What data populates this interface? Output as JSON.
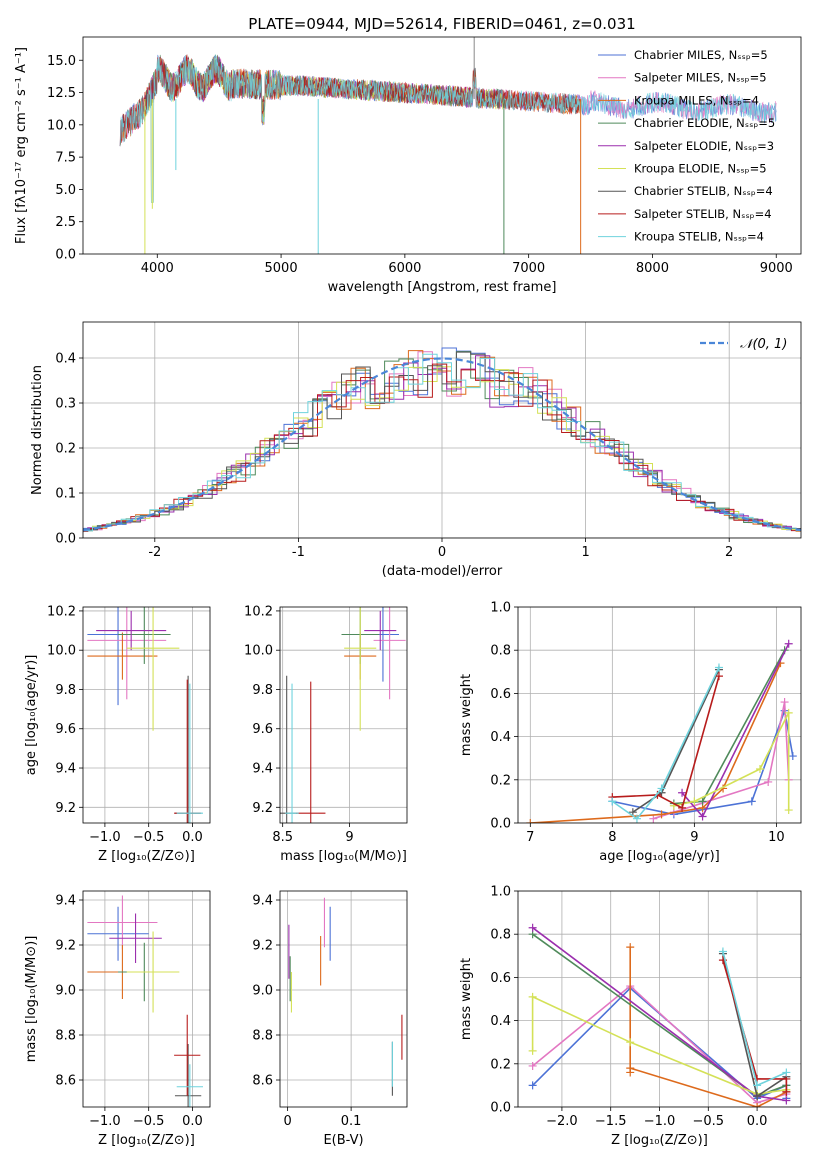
{
  "chart_data": [
    {
      "id": "spectrum",
      "type": "line",
      "title": "PLATE=0944, MJD=52614, FIBERID=0461, z=0.031",
      "xlabel": "wavelength [Angstrom, rest frame]",
      "ylabel": "Flux [fλ10⁻¹⁷ erg cm⁻² s⁻¹ A⁻¹]",
      "xlim": [
        3400,
        9200
      ],
      "ylim": [
        0,
        16.8
      ],
      "xticks": [
        4000,
        5000,
        6000,
        7000,
        8000,
        9000
      ],
      "yticks": [
        0.0,
        2.5,
        5.0,
        7.5,
        10.0,
        12.5,
        15.0
      ],
      "legend_position": "top-right",
      "grid": false,
      "series": [
        {
          "name": "Chabrier MILES, Nₛₛₚ=5",
          "color": "#4c72d6",
          "x": [
            3700,
            9000
          ]
        },
        {
          "name": "Salpeter MILES, Nₛₛₚ=5",
          "color": "#e377c2",
          "x": [
            3700,
            9000
          ]
        },
        {
          "name": "Kroupa MILES, Nₛₛₚ=4",
          "color": "#dd6a1c",
          "x": [
            3700,
            7420
          ]
        },
        {
          "name": "Chabrier ELODIE, Nₛₛₚ=5",
          "color": "#4f8a5b",
          "x": [
            3900,
            6800
          ]
        },
        {
          "name": "Salpeter ELODIE, Nₛₛₚ=3",
          "color": "#9b2fae",
          "x": [
            3900,
            6800
          ]
        },
        {
          "name": "Kroupa ELODIE, Nₛₛₚ=5",
          "color": "#d4e157",
          "x": [
            3900,
            6800
          ]
        },
        {
          "name": "Chabrier STELIB, Nₛₛₚ=4",
          "color": "#555555",
          "x": [
            3700,
            7420
          ]
        },
        {
          "name": "Salpeter STELIB, Nₛₛₚ=4",
          "color": "#b71c1c",
          "x": [
            3700,
            7420
          ]
        },
        {
          "name": "Kroupa STELIB, Nₛₛₚ=4",
          "color": "#6fd3dd",
          "x": [
            3700,
            9000
          ]
        }
      ]
    },
    {
      "id": "residuals",
      "type": "line",
      "xlabel": "(data-model)/error",
      "ylabel": "Normed distribution",
      "xlim": [
        -2.5,
        2.5
      ],
      "ylim": [
        0,
        0.48
      ],
      "xticks": [
        -2,
        -1,
        0,
        1,
        2
      ],
      "yticks": [
        0.0,
        0.1,
        0.2,
        0.3,
        0.4
      ],
      "grid": true,
      "legend": "𝒩(0, 1)",
      "legend_position": "top-right"
    },
    {
      "id": "age_vs_Z",
      "type": "scatter",
      "xlabel": "Z [log₁₀(Z/Z⊙)]",
      "ylabel": "age  [log₁₀(age/yr)]",
      "xlim": [
        -1.25,
        0.2
      ],
      "ylim": [
        9.12,
        10.22
      ],
      "xticks": [
        -1.0,
        -0.5,
        0.0
      ],
      "xtick_labels": [
        "−1.0",
        "−0.5",
        "0.0"
      ],
      "yticks": [
        9.2,
        9.4,
        9.6,
        9.8,
        10.0,
        10.2
      ],
      "grid": true,
      "points": [
        {
          "color": "#4c72d6",
          "x": -0.85,
          "xerr": 0.35,
          "y": 10.08,
          "yerr": 0.36
        },
        {
          "color": "#e377c2",
          "x": -0.75,
          "xerr": 0.45,
          "y": 10.05,
          "yerr": 0.3
        },
        {
          "color": "#dd6a1c",
          "x": -0.8,
          "xerr": 0.4,
          "y": 9.97,
          "yerr": 0.12
        },
        {
          "color": "#4f8a5b",
          "x": -0.55,
          "xerr": 0.3,
          "y": 10.08,
          "yerr": 0.15
        },
        {
          "color": "#9b2fae",
          "x": -0.7,
          "xerr": 0.4,
          "y": 10.1,
          "yerr": 0.1
        },
        {
          "color": "#d4e157",
          "x": -0.45,
          "xerr": 0.3,
          "y": 10.01,
          "yerr": 0.42
        },
        {
          "color": "#555555",
          "x": -0.05,
          "xerr": 0.15,
          "y": 9.17,
          "yerr": 0.7
        },
        {
          "color": "#b71c1c",
          "x": -0.06,
          "xerr": 0.15,
          "y": 9.17,
          "yerr": 0.68
        },
        {
          "color": "#6fd3dd",
          "x": -0.03,
          "xerr": 0.15,
          "y": 9.17,
          "yerr": 0.66
        }
      ]
    },
    {
      "id": "age_vs_mass",
      "type": "scatter",
      "xlabel": "mass [log₁₀(M/M⊙)]",
      "xlim": [
        8.48,
        9.43
      ],
      "ylim": [
        9.12,
        10.22
      ],
      "xticks": [
        8.5,
        9.0
      ],
      "yticks": [
        9.2,
        9.4,
        9.6,
        9.8,
        10.0,
        10.2
      ],
      "grid": true,
      "points": [
        {
          "color": "#4c72d6",
          "x": 9.25,
          "xerr": 0.12,
          "y": 10.08,
          "yerr": 0.24
        },
        {
          "color": "#e377c2",
          "x": 9.3,
          "xerr": 0.12,
          "y": 10.05,
          "yerr": 0.3
        },
        {
          "color": "#dd6a1c",
          "x": 9.08,
          "xerr": 0.12,
          "y": 9.97,
          "yerr": 0.12
        },
        {
          "color": "#4f8a5b",
          "x": 9.08,
          "xerr": 0.14,
          "y": 10.08,
          "yerr": 0.15
        },
        {
          "color": "#9b2fae",
          "x": 9.23,
          "xerr": 0.12,
          "y": 10.1,
          "yerr": 0.1
        },
        {
          "color": "#d4e157",
          "x": 9.08,
          "xerr": 0.12,
          "y": 10.01,
          "yerr": 0.42
        },
        {
          "color": "#555555",
          "x": 8.53,
          "xerr": 0.08,
          "y": 9.17,
          "yerr": 0.7
        },
        {
          "color": "#b71c1c",
          "x": 8.71,
          "xerr": 0.11,
          "y": 9.17,
          "yerr": 0.67
        },
        {
          "color": "#6fd3dd",
          "x": 8.57,
          "xerr": 0.05,
          "y": 9.17,
          "yerr": 0.66
        }
      ]
    },
    {
      "id": "weight_vs_age",
      "type": "line",
      "xlabel": "age  [log₁₀(age/yr)]",
      "ylabel": "mass weight",
      "xlim": [
        6.85,
        10.3
      ],
      "ylim": [
        0,
        1.0
      ],
      "xticks": [
        7,
        8,
        9,
        10
      ],
      "yticks": [
        0.0,
        0.2,
        0.4,
        0.6,
        0.8,
        1.0
      ],
      "grid": true,
      "series": [
        {
          "color": "#4c72d6",
          "x": [
            8.0,
            8.75,
            9.7,
            10.1,
            10.2
          ],
          "y": [
            0.1,
            0.04,
            0.1,
            0.52,
            0.31
          ]
        },
        {
          "color": "#e377c2",
          "x": [
            8.5,
            8.75,
            9.9,
            10.1,
            10.15
          ],
          "y": [
            0.02,
            0.05,
            0.19,
            0.56,
            0.2
          ]
        },
        {
          "color": "#dd6a1c",
          "x": [
            7.0,
            8.6,
            9.1,
            9.35,
            10.05
          ],
          "y": [
            0.0,
            0.04,
            0.07,
            0.16,
            0.74
          ]
        },
        {
          "color": "#4f8a5b",
          "x": [
            8.75,
            9.1,
            10.1
          ],
          "y": [
            0.09,
            0.1,
            0.8
          ]
        },
        {
          "color": "#9b2fae",
          "x": [
            8.85,
            9.1,
            10.15
          ],
          "y": [
            0.14,
            0.03,
            0.83
          ]
        },
        {
          "color": "#d4e157",
          "x": [
            8.75,
            9.0,
            9.8,
            10.15,
            10.15
          ],
          "y": [
            0.08,
            0.1,
            0.25,
            0.51,
            0.06
          ]
        },
        {
          "color": "#555555",
          "x": [
            8.25,
            8.6,
            9.3
          ],
          "y": [
            0.05,
            0.14,
            0.71
          ]
        },
        {
          "color": "#b71c1c",
          "x": [
            8.0,
            8.55,
            8.85,
            9.3
          ],
          "y": [
            0.12,
            0.13,
            0.07,
            0.68
          ]
        },
        {
          "color": "#6fd3dd",
          "x": [
            8.0,
            8.3,
            8.6,
            9.3
          ],
          "y": [
            0.1,
            0.02,
            0.16,
            0.72
          ]
        }
      ]
    },
    {
      "id": "mass_vs_Z",
      "type": "scatter",
      "xlabel": "Z [log₁₀(Z/Z⊙)]",
      "ylabel": "mass [log₁₀(M/M⊙)]",
      "xlim": [
        -1.25,
        0.2
      ],
      "ylim": [
        8.48,
        9.44
      ],
      "xticks": [
        -1.0,
        -0.5,
        0.0
      ],
      "xtick_labels": [
        "−1.0",
        "−0.5",
        "0.0"
      ],
      "yticks": [
        8.6,
        8.8,
        9.0,
        9.2,
        9.4
      ],
      "grid": true,
      "points": [
        {
          "color": "#4c72d6",
          "x": -0.85,
          "xerr": 0.35,
          "y": 9.25,
          "yerr": 0.12
        },
        {
          "color": "#e377c2",
          "x": -0.8,
          "xerr": 0.4,
          "y": 9.3,
          "yerr": 0.12
        },
        {
          "color": "#dd6a1c",
          "x": -0.8,
          "xerr": 0.4,
          "y": 9.08,
          "yerr": 0.12
        },
        {
          "color": "#4f8a5b",
          "x": -0.55,
          "xerr": 0.3,
          "y": 9.08,
          "yerr": 0.13
        },
        {
          "color": "#9b2fae",
          "x": -0.65,
          "xerr": 0.3,
          "y": 9.23,
          "yerr": 0.11
        },
        {
          "color": "#d4e157",
          "x": -0.45,
          "xerr": 0.3,
          "y": 9.08,
          "yerr": 0.18
        },
        {
          "color": "#555555",
          "x": -0.05,
          "xerr": 0.15,
          "y": 8.53,
          "yerr": 0.23
        },
        {
          "color": "#b71c1c",
          "x": -0.06,
          "xerr": 0.15,
          "y": 8.71,
          "yerr": 0.18
        },
        {
          "color": "#6fd3dd",
          "x": -0.03,
          "xerr": 0.15,
          "y": 8.57,
          "yerr": 0.1
        }
      ]
    },
    {
      "id": "mass_vs_ebv",
      "type": "scatter",
      "xlabel": "E(B-V)",
      "xlim": [
        -0.012,
        0.188
      ],
      "ylim": [
        8.48,
        9.44
      ],
      "xticks": [
        0.0,
        0.1
      ],
      "yticks": [
        8.6,
        8.8,
        9.0,
        9.2,
        9.4
      ],
      "grid": true,
      "points": [
        {
          "color": "#4c72d6",
          "x": 0.067,
          "y": 9.25,
          "yerr": 0.12
        },
        {
          "color": "#e377c2",
          "x": 0.058,
          "y": 9.3,
          "yerr": 0.11
        },
        {
          "color": "#dd6a1c",
          "x": 0.052,
          "y": 9.13,
          "yerr": 0.11
        },
        {
          "color": "#4f8a5b",
          "x": 0.004,
          "y": 9.05,
          "yerr": 0.1
        },
        {
          "color": "#9b2fae",
          "x": 0.002,
          "y": 9.17,
          "yerr": 0.12
        },
        {
          "color": "#d4e157",
          "x": 0.006,
          "y": 8.99,
          "yerr": 0.09
        },
        {
          "color": "#555555",
          "x": 0.165,
          "y": 8.65,
          "yerr": 0.12
        },
        {
          "color": "#b71c1c",
          "x": 0.18,
          "y": 8.79,
          "yerr": 0.1
        },
        {
          "color": "#6fd3dd",
          "x": 0.165,
          "y": 8.67,
          "yerr": 0.1
        }
      ]
    },
    {
      "id": "weight_vs_Z",
      "type": "line",
      "xlabel": "Z [log₁₀(Z/Z⊙)]",
      "ylabel": "mass weight",
      "xlim": [
        -2.45,
        0.45
      ],
      "ylim": [
        0,
        1.0
      ],
      "xticks": [
        -2.0,
        -1.5,
        -1.0,
        -0.5,
        0.0
      ],
      "xtick_labels": [
        "−2.0",
        "−1.5",
        "−1.0",
        "−0.5",
        "0.0"
      ],
      "yticks": [
        0.0,
        0.2,
        0.4,
        0.6,
        0.8,
        1.0
      ],
      "grid": true,
      "series": [
        {
          "color": "#4c72d6",
          "x": [
            -2.3,
            -1.3,
            0.0,
            0.3,
            0.3
          ],
          "y": [
            0.1,
            0.55,
            0.04,
            0.1,
            0.04
          ]
        },
        {
          "color": "#e377c2",
          "x": [
            -2.3,
            -1.3,
            0.0,
            0.3
          ],
          "y": [
            0.19,
            0.56,
            0.02,
            0.06
          ]
        },
        {
          "color": "#dd6a1c",
          "x": [
            -1.3,
            -1.3,
            -1.3,
            0.0,
            0.3
          ],
          "y": [
            0.74,
            0.16,
            0.18,
            0.0,
            0.07
          ]
        },
        {
          "color": "#4f8a5b",
          "x": [
            -2.3,
            0.0,
            0.3
          ],
          "y": [
            0.8,
            0.05,
            0.1
          ]
        },
        {
          "color": "#9b2fae",
          "x": [
            -2.3,
            0.0,
            0.3
          ],
          "y": [
            0.83,
            0.05,
            0.03
          ]
        },
        {
          "color": "#d4e157",
          "x": [
            -2.3,
            -2.3,
            -1.3,
            0.0,
            0.3
          ],
          "y": [
            0.26,
            0.51,
            0.3,
            0.06,
            0.08
          ]
        },
        {
          "color": "#555555",
          "x": [
            -0.35,
            0.0,
            0.3
          ],
          "y": [
            0.71,
            0.05,
            0.14
          ]
        },
        {
          "color": "#b71c1c",
          "x": [
            -0.35,
            0.0,
            0.3,
            0.3
          ],
          "y": [
            0.68,
            0.13,
            0.13,
            0.07
          ]
        },
        {
          "color": "#6fd3dd",
          "x": [
            -0.35,
            0.0,
            0.3
          ],
          "y": [
            0.72,
            0.1,
            0.16
          ]
        }
      ]
    }
  ]
}
